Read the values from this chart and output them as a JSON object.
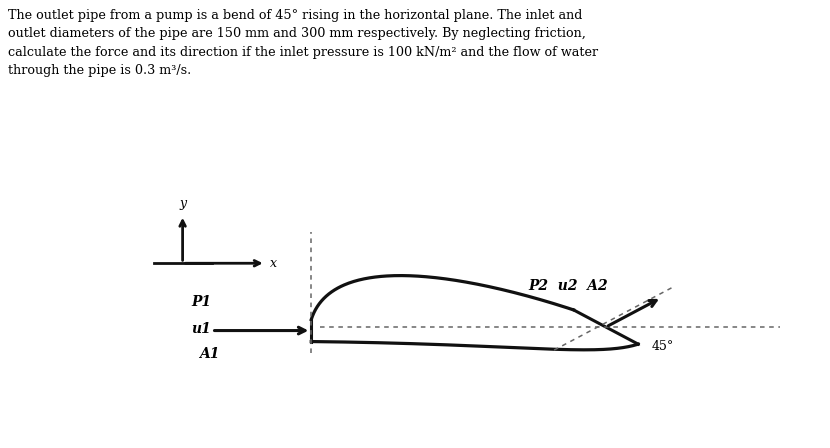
{
  "background_color": "#ffffff",
  "pipe_color": "#111111",
  "dashed_color": "#666666",
  "text_color": "#000000",
  "title_line1": "The outlet pipe from a pump is a bend of 45° rising in the horizontal plane. The inlet and",
  "title_line2": "outlet diameters of the pipe are 150 mm and 300 mm respectively. By neglecting friction,",
  "title_line3": "calculate the force and its direction if the inlet pressure is 100 kN/m² and the flow of water",
  "title_line4": "through the pipe is 0.3 m³/s.",
  "label_P1": "P1",
  "label_u1": "u1",
  "label_A1": "A1",
  "label_P2": "P2",
  "label_u2": "u2",
  "label_A2": "A2",
  "label_angle": "45°",
  "label_x": "x",
  "label_y": "y"
}
